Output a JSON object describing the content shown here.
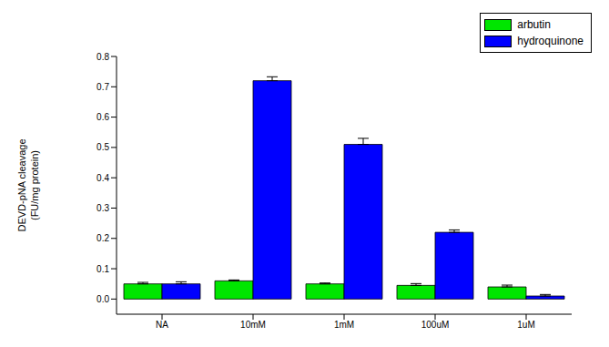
{
  "chart_data": {
    "type": "bar",
    "y_label": [
      "DEVD-pNA cleavage",
      "(FU/mg protein)"
    ],
    "categories": [
      "NA",
      "10mM",
      "1mM",
      "100uM",
      "1uM"
    ],
    "series": [
      {
        "name": "arbutin",
        "color": "#00e600",
        "values": [
          0.05,
          0.06,
          0.05,
          0.045,
          0.04
        ],
        "errors": [
          0.005,
          0.003,
          0.003,
          0.006,
          0.006
        ]
      },
      {
        "name": "hydroquinone",
        "color": "#0000ff",
        "values": [
          0.05,
          0.72,
          0.51,
          0.22,
          0.01
        ],
        "errors": [
          0.007,
          0.013,
          0.02,
          0.008,
          0.005
        ]
      }
    ],
    "ylim": [
      -0.05,
      0.8
    ],
    "yticks": [
      {
        "value": 0,
        "label": "0.0"
      },
      0.1,
      0.2,
      0.3,
      0.4,
      0.5,
      0.6,
      0.7,
      0.8
    ],
    "legend": "upper right",
    "grid": false
  }
}
